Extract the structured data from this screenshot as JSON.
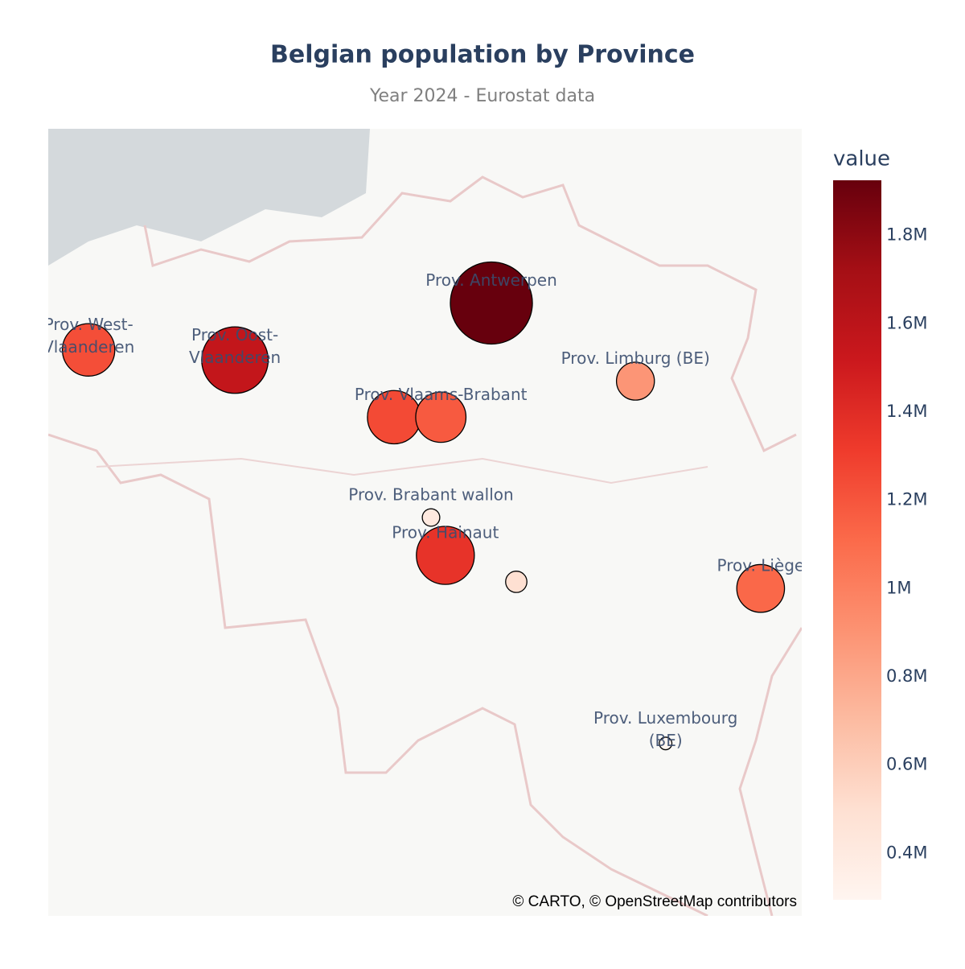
{
  "chart_data": {
    "type": "scatter_map",
    "title": "Belgian population by Province",
    "subtitle": "Year 2024 - Eurostat data",
    "attribution": "© CARTO, © OpenStreetMap contributors",
    "colorbar_title": "value",
    "labels": [
      [
        "Prov. West-",
        "Vlaanderen"
      ],
      [
        "Prov. Oost-",
        "Vlaanderen"
      ],
      [
        "Prov. Antwerpen"
      ],
      null,
      [
        "Prov. Vlaams-Brabant"
      ],
      [
        "Prov. Limburg (BE)"
      ],
      [
        "Prov. Brabant wallon"
      ],
      [
        "Prov. Hainaut"
      ],
      null,
      [
        "Prov. Liège"
      ],
      [
        "Prov. Luxembourg",
        "(BE)"
      ]
    ],
    "lon": [
      3.332,
      3.72,
      4.4,
      4.142,
      4.266,
      4.782,
      4.24,
      4.278,
      4.466,
      5.114,
      4.862
    ],
    "lat": [
      51.142,
      51.125,
      51.22,
      51.03,
      51.03,
      51.09,
      50.863,
      50.8,
      50.756,
      50.745,
      50.487
    ],
    "values": [
      1230000,
      1560000,
      1925000,
      1250000,
      1180000,
      890000,
      410000,
      1360000,
      500000,
      1120000,
      295000
    ],
    "lonlim": [
      3.225,
      5.223
    ],
    "latlim": [
      50.2,
      51.51
    ],
    "clim": [
      295000,
      1925000
    ],
    "colorscale": [
      "#fff5f0",
      "#fee0d2",
      "#fcbba1",
      "#fc9272",
      "#fb6a4a",
      "#ef3b2c",
      "#cb181d",
      "#a50f15",
      "#67000d"
    ],
    "cticks": [
      {
        "value": 400000,
        "label": "0.4M"
      },
      {
        "value": 600000,
        "label": "0.6M"
      },
      {
        "value": 800000,
        "label": "0.8M"
      },
      {
        "value": 1000000,
        "label": "1M"
      },
      {
        "value": 1200000,
        "label": "1.2M"
      },
      {
        "value": 1400000,
        "label": "1.4M"
      },
      {
        "value": 1600000,
        "label": "1.6M"
      },
      {
        "value": 1800000,
        "label": "1.8M"
      }
    ]
  }
}
